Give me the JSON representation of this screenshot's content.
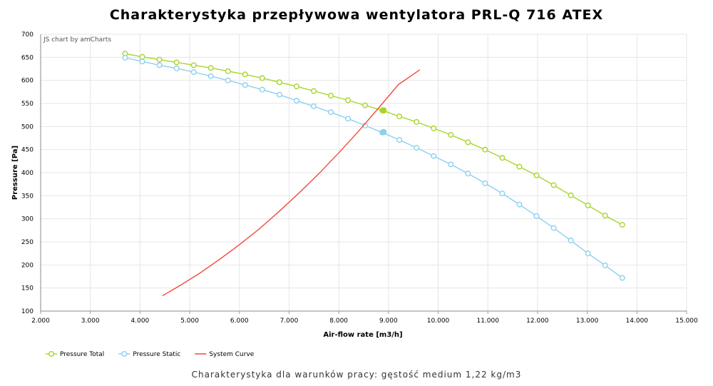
{
  "chart_data": {
    "type": "line",
    "title": "Charakterystyka przepływowa wentylatora PRL-Q 716 ATEX",
    "subtitle": "Charakterystyka dla warunków pracy: gęstość medium 1,22 kg/m3",
    "credit": "JS chart by amCharts",
    "xlabel": "Air-flow rate [m3/h]",
    "ylabel": "Pressure [Pa]",
    "xlim": [
      2000,
      15000
    ],
    "ylim": [
      100,
      700
    ],
    "x_ticks": [
      2000,
      3000,
      4000,
      5000,
      6000,
      7000,
      8000,
      9000,
      10000,
      11000,
      12000,
      13000,
      14000,
      15000
    ],
    "x_tick_labels": [
      "2.000",
      "3.000",
      "4.000",
      "5.000",
      "6.000",
      "7.000",
      "8.000",
      "9.000",
      "10.000",
      "11.000",
      "12.000",
      "13.000",
      "14.000",
      "15.000"
    ],
    "y_ticks": [
      100,
      150,
      200,
      250,
      300,
      350,
      400,
      450,
      500,
      550,
      600,
      650,
      700
    ],
    "grid": true,
    "legend_position": "bottom-left",
    "series": [
      {
        "name": "Pressure Total",
        "color": "#a7d629",
        "marker": "circle",
        "x": [
          3700,
          4045,
          4390,
          4735,
          5080,
          5425,
          5770,
          6115,
          6460,
          6805,
          7150,
          7495,
          7840,
          8185,
          8530,
          8875,
          9220,
          9565,
          9910,
          10255,
          10600,
          10945,
          11290,
          11635,
          11980,
          12325,
          12670,
          13015,
          13360,
          13705
        ],
        "y": [
          658,
          651,
          645,
          639,
          633,
          627,
          620,
          613,
          605,
          596,
          587,
          577,
          567,
          557,
          546,
          535,
          522,
          510,
          496,
          482,
          466,
          450,
          432,
          413,
          394,
          373,
          351,
          329,
          307,
          287
        ]
      },
      {
        "name": "Pressure Static",
        "color": "#8cd0f0",
        "marker": "circle",
        "x": [
          3700,
          4045,
          4390,
          4735,
          5080,
          5425,
          5770,
          6115,
          6460,
          6805,
          7150,
          7495,
          7840,
          8185,
          8530,
          8875,
          9220,
          9565,
          9910,
          10255,
          10600,
          10945,
          11290,
          11635,
          11980,
          12325,
          12670,
          13015,
          13360,
          13705
        ],
        "y": [
          649,
          641,
          633,
          626,
          618,
          609,
          600,
          590,
          580,
          569,
          556,
          544,
          531,
          517,
          502,
          487,
          471,
          454,
          436,
          418,
          398,
          377,
          355,
          331,
          306,
          280,
          253,
          225,
          199,
          172
        ]
      },
      {
        "name": "System Curve",
        "color": "#f04a3a",
        "marker": "none",
        "x": [
          4450,
          4800,
          5200,
          5600,
          6000,
          6400,
          6800,
          7200,
          7600,
          8000,
          8400,
          8800,
          9200,
          9630
        ],
        "y": [
          133,
          155,
          182,
          212,
          244,
          278,
          316,
          356,
          398,
          443,
          490,
          540,
          591,
          623
        ]
      }
    ],
    "operating_points": [
      {
        "series": "Pressure Total",
        "x": 8900,
        "y": 535
      },
      {
        "series": "Pressure Static",
        "x": 8900,
        "y": 488
      }
    ]
  }
}
